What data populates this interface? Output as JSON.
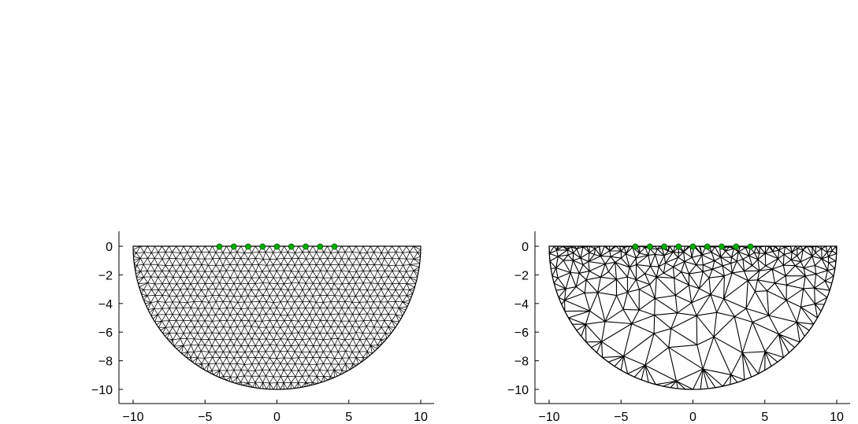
{
  "chart_data": [
    {
      "type": "mesh",
      "mesh_style": "fine-uniform",
      "xlim": [
        -10,
        10
      ],
      "ylim": [
        -11,
        1
      ],
      "xticks": [
        -10,
        -5,
        0,
        5,
        10
      ],
      "xtick_labels": [
        "−10",
        "−5",
        "0",
        "5",
        "10"
      ],
      "yticks": [
        0,
        -2,
        -4,
        -6,
        -8,
        -10
      ],
      "ytick_labels": [
        "0",
        "−2",
        "−4",
        "−6",
        "−8",
        "−10"
      ],
      "domain": {
        "shape": "half-disk",
        "center": [
          0,
          0
        ],
        "radius": 10
      },
      "electrodes": {
        "x": [
          -4,
          -3,
          -2,
          -1,
          0,
          1,
          2,
          3,
          4
        ],
        "y": 0
      },
      "mesh_color": "#000000",
      "electrode_color": "#00aa00"
    },
    {
      "type": "mesh",
      "mesh_style": "coarse-graded",
      "xlim": [
        -10,
        10
      ],
      "ylim": [
        -11,
        1
      ],
      "xticks": [
        -10,
        -5,
        0,
        5,
        10
      ],
      "xtick_labels": [
        "−10",
        "−5",
        "0",
        "5",
        "10"
      ],
      "yticks": [
        0,
        -2,
        -4,
        -6,
        -8,
        -10
      ],
      "ytick_labels": [
        "0",
        "−2",
        "−4",
        "−6",
        "−8",
        "−10"
      ],
      "domain": {
        "shape": "half-disk",
        "center": [
          0,
          0
        ],
        "radius": 10
      },
      "electrodes": {
        "x": [
          -4,
          -3,
          -2,
          -1,
          0,
          1,
          2,
          3,
          4
        ],
        "y": 0
      },
      "mesh_color": "#000000",
      "electrode_color": "#00aa00"
    }
  ]
}
